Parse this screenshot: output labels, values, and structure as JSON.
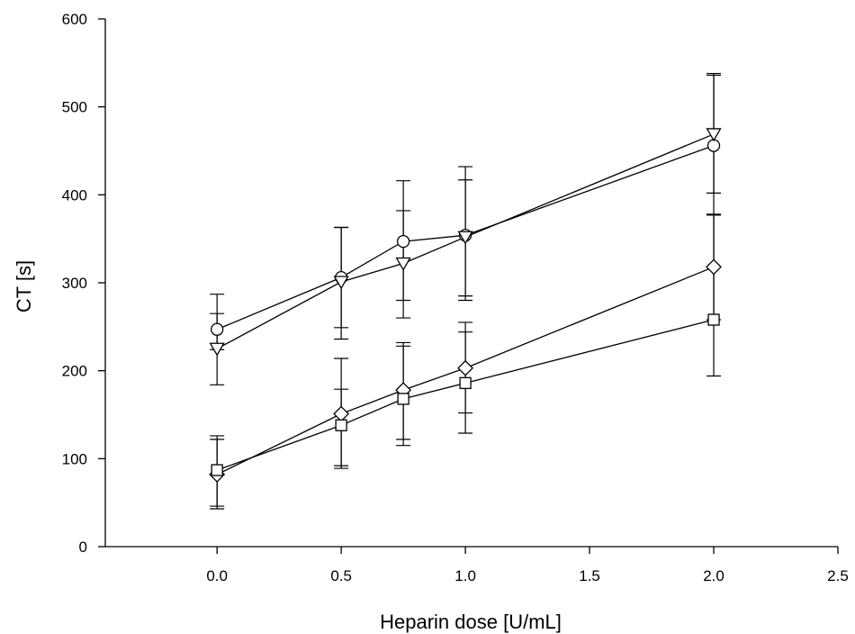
{
  "chart_data": {
    "type": "line",
    "title": "",
    "xlabel": "Heparin dose [U/mL]",
    "ylabel": "CT [s]",
    "xlim": [
      -0.45,
      2.5
    ],
    "ylim": [
      0,
      600
    ],
    "x_ticks": [
      "0.0",
      "0.5",
      "1.0",
      "1.5",
      "2.0",
      "2.5"
    ],
    "y_ticks": [
      "0",
      "100",
      "200",
      "300",
      "400",
      "500",
      "600"
    ],
    "grid": false,
    "legend": "none",
    "x": [
      0.0,
      0.5,
      0.75,
      1.0,
      2.0
    ],
    "series": [
      {
        "marker": "circle",
        "values": [
          247,
          306,
          347,
          354,
          456
        ],
        "err_low": [
          224,
          249,
          280,
          280,
          377
        ],
        "err_high": [
          287,
          363,
          416,
          432,
          538
        ]
      },
      {
        "marker": "triangle-down",
        "values": [
          225,
          301,
          322,
          352,
          469
        ],
        "err_low": [
          184,
          236,
          260,
          285,
          402
        ],
        "err_high": [
          265,
          363,
          382,
          417,
          536
        ]
      },
      {
        "marker": "diamond",
        "values": [
          82,
          151,
          178,
          203,
          318
        ],
        "err_low": [
          43,
          92,
          122,
          152,
          258
        ],
        "err_high": [
          122,
          214,
          232,
          255,
          378
        ]
      },
      {
        "marker": "square",
        "values": [
          87,
          138,
          168,
          186,
          258
        ],
        "err_low": [
          46,
          89,
          115,
          129,
          194
        ],
        "err_high": [
          126,
          179,
          228,
          244,
          377
        ]
      }
    ],
    "colors": {
      "stroke": "#000000",
      "marker_fill": "#ffffff"
    }
  }
}
